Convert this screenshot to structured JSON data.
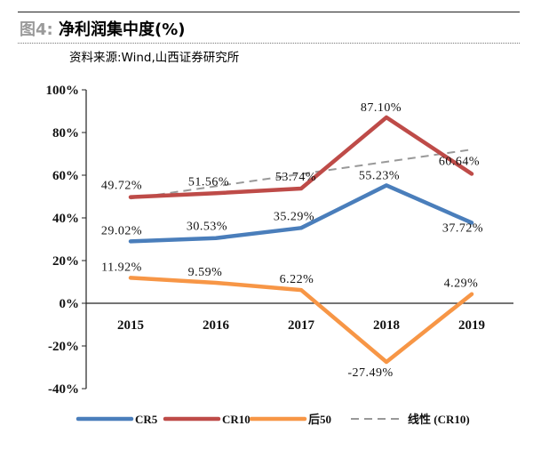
{
  "header": {
    "figure_label": "图4:",
    "title": "净利润集中度(%)",
    "source": "资料来源:Wind,山西证券研究所"
  },
  "colors": {
    "CR5": "#4A7EBB",
    "CR10": "#BE4B48",
    "后50": "#F79646",
    "trend": "#999999"
  },
  "chart_data": {
    "type": "line",
    "categories": [
      "2015",
      "2016",
      "2017",
      "2018",
      "2019"
    ],
    "y_ticks": [
      "100%",
      "80%",
      "60%",
      "40%",
      "20%",
      "0%",
      "-20%",
      "-40%"
    ],
    "ylim": [
      -40,
      100
    ],
    "series": [
      {
        "name": "CR5",
        "values": [
          29.02,
          30.53,
          35.29,
          55.23,
          37.72
        ],
        "labels": [
          "29.02%",
          "30.53%",
          "35.29%",
          "55.23%",
          "37.72%"
        ]
      },
      {
        "name": "CR10",
        "values": [
          49.72,
          51.56,
          53.74,
          87.1,
          60.64
        ],
        "labels": [
          "49.72%",
          "51.56%",
          "53.74%",
          "87.10%",
          "60.64%"
        ]
      },
      {
        "name": "后50",
        "values": [
          11.92,
          9.59,
          6.22,
          -27.49,
          4.29
        ],
        "labels": [
          "11.92%",
          "9.59%",
          "6.22%",
          "-27.49%",
          "4.29%"
        ]
      }
    ],
    "trendline": {
      "name": "线性 (CR10)",
      "of": "CR10",
      "style": "dashed"
    },
    "legend": {
      "position": "bottom"
    },
    "grid": false
  }
}
